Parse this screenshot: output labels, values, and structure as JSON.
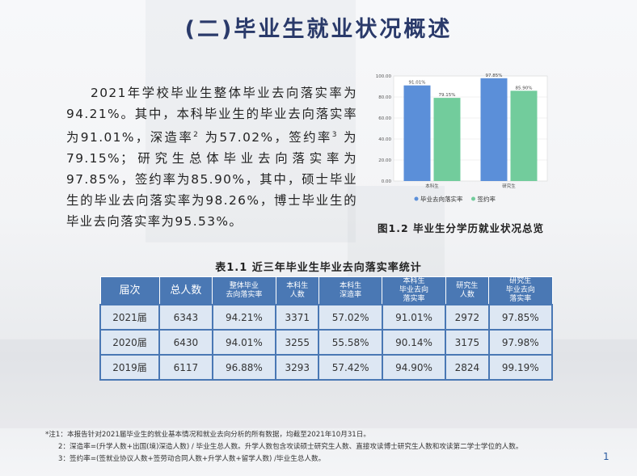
{
  "title": "(二)毕业生就业状况概述",
  "paragraph": {
    "t1": "2021年学校毕业生整体毕业去向落实率为94.21%。其中，本科毕业生的毕业去向落实率为91.01%，深造率",
    "sup1": "2",
    "t2": " 为57.02%，签约率",
    "sup2": "3",
    "t3": " 为79.15%；研究生总体毕业去向落实率为97.85%，签约率为85.90%，其中，硕士毕业生的毕业去向落实率为98.26%，博士毕业生的毕业去向落实率为95.53%。"
  },
  "chart_data": {
    "type": "bar",
    "categories": [
      "本科生",
      "研究生"
    ],
    "series": [
      {
        "name": "毕业去向落实率",
        "values": [
          91.01,
          97.85
        ],
        "color": "#5b8fd9"
      },
      {
        "name": "签约率",
        "values": [
          79.15,
          85.9
        ],
        "color": "#72cc9c"
      }
    ],
    "data_labels": [
      [
        "91.01%",
        "97.85%"
      ],
      [
        "79.15%",
        "85.90%"
      ]
    ],
    "y_ticks": [
      "0.00",
      "20.00",
      "40.00",
      "60.00",
      "80.00",
      "100.00"
    ],
    "ylim": [
      0,
      100
    ],
    "grid": true,
    "legend": "bottom"
  },
  "figure_caption": "图1.2  毕业生分学历就业状况总览",
  "table": {
    "title": "表1.1  近三年毕业生毕业去向落实率统计",
    "headers": [
      {
        "l1": "届次"
      },
      {
        "l1": "总人数"
      },
      {
        "l1": "整体毕业",
        "l2": "去向落实率"
      },
      {
        "l1": "本科生",
        "l2": "人数"
      },
      {
        "l1": "本科生",
        "l2": "深造率"
      },
      {
        "l1": "本科生",
        "l2": "毕业去向",
        "l3": "落实率"
      },
      {
        "l1": "研究生",
        "l2": "人数"
      },
      {
        "l1": "研究生",
        "l2": "毕业去向",
        "l3": "落实率"
      }
    ],
    "rows": [
      [
        "2021届",
        "6343",
        "94.21%",
        "3371",
        "57.02%",
        "91.01%",
        "2972",
        "97.85%"
      ],
      [
        "2020届",
        "6430",
        "94.01%",
        "3255",
        "55.58%",
        "90.14%",
        "3175",
        "97.98%"
      ],
      [
        "2019届",
        "6117",
        "96.88%",
        "3293",
        "57.42%",
        "94.90%",
        "2824",
        "99.19%"
      ]
    ]
  },
  "notes": [
    "*注1：本报告针对2021届毕业生的就业基本情况和就业去向分析的所有数据，均截至2021年10月31日。",
    "2：深造率=(升学人数+出国(境)深造人数) / 毕业生总人数。升学人数包含攻读硕士研究生人数、直接攻读博士研究生人数和攻读第二学士学位的人数。",
    "3：签约率=(签就业协议人数+签劳动合同人数+升学人数+留学人数) /毕业生总人数。"
  ],
  "page_number": "1"
}
